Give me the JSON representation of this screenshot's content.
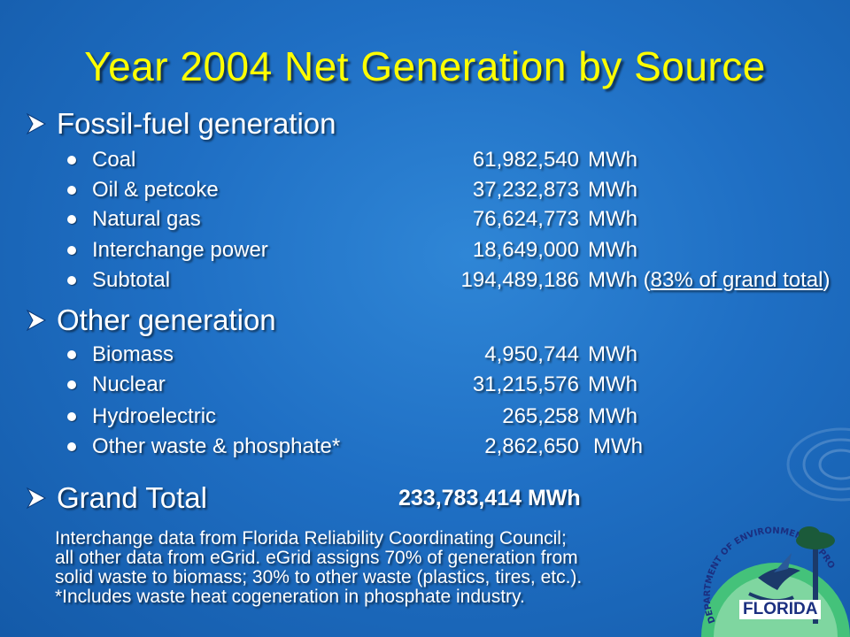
{
  "title": "Year 2004 Net Generation by Source",
  "fossil": {
    "heading": "Fossil-fuel generation",
    "items": [
      {
        "label": "Coal",
        "value": "61,982,540",
        "unit": "MWh"
      },
      {
        "label": "Oil & petcoke",
        "value": "37,232,873",
        "unit": "MWh"
      },
      {
        "label": "Natural gas",
        "value": "76,624,773",
        "unit": "MWh"
      },
      {
        "label": "Interchange power",
        "value": "18,649,000",
        "unit": "MWh"
      },
      {
        "label": "Subtotal",
        "value": "194,489,186",
        "unit": "MWh",
        "note": "83% of grand total"
      }
    ]
  },
  "other": {
    "heading": "Other generation",
    "items": [
      {
        "label": "Biomass",
        "value": "4,950,744",
        "unit": "MWh"
      },
      {
        "label": "Nuclear",
        "value": "31,215,576",
        "unit": "MWh"
      },
      {
        "label": "Hydroelectric",
        "value": "265,258",
        "unit": "MWh"
      },
      {
        "label": "Other waste & phosphate*",
        "value": "2,862,650",
        "unit": "MWh"
      }
    ]
  },
  "grand_total": {
    "label": "Grand Total",
    "value": "233,783,414 MWh"
  },
  "notes": [
    "Interchange data from Florida Reliability Coordinating Council;",
    "all other data from eGrid.  eGrid assigns 70% of generation from",
    "solid waste  to biomass; 30% to other waste (plastics, tires, etc.).",
    "*Includes waste heat cogeneration in phosphate industry."
  ],
  "logo": {
    "text": "FLORIDA",
    "arc_text": "DEPARTMENT OF ENVIRONMENTAL PROTECTION"
  },
  "colors": {
    "title": "#ffff00",
    "background": "#1f6fc4",
    "text": "#ffffff"
  }
}
